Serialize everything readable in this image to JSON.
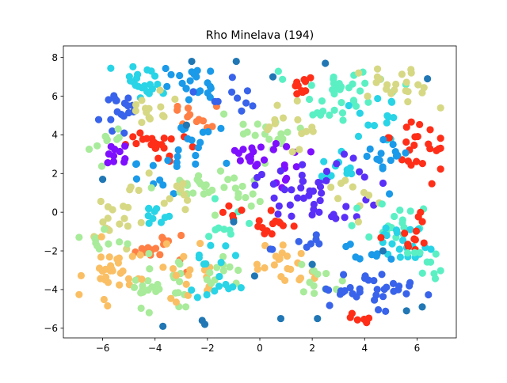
{
  "chart_data": {
    "type": "scatter",
    "title": "Rho Minelava (194)",
    "xlabel": "",
    "ylabel": "",
    "xlim": [
      -7.5,
      7.5
    ],
    "ylim": [
      -6.5,
      8.6
    ],
    "xticks": [
      -6,
      -4,
      -2,
      0,
      2,
      4,
      6
    ],
    "yticks": [
      -6,
      -4,
      -2,
      0,
      2,
      4,
      6,
      8
    ],
    "grid": false,
    "legend": "none",
    "colormap": "rainbow",
    "clusters": [
      {
        "label": "c01",
        "color": "#28d4e6",
        "center": [
          -4.6,
          6.8
        ],
        "spread": [
          0.55,
          0.45
        ],
        "n": 22
      },
      {
        "label": "c02",
        "color": "#1a9ae9",
        "center": [
          -2.5,
          6.7
        ],
        "spread": [
          0.6,
          0.5
        ],
        "n": 22
      },
      {
        "label": "c03",
        "color": "#ff7f45",
        "center": [
          -2.7,
          4.9
        ],
        "spread": [
          0.35,
          0.35
        ],
        "n": 12
      },
      {
        "label": "c04",
        "color": "#3863ea",
        "center": [
          -5.4,
          5.1
        ],
        "spread": [
          0.5,
          0.6
        ],
        "n": 18
      },
      {
        "label": "c05",
        "color": "#d6d884",
        "center": [
          -4.2,
          5.4
        ],
        "spread": [
          0.4,
          0.5
        ],
        "n": 14
      },
      {
        "label": "c06",
        "color": "#a8eb9a",
        "center": [
          -6.0,
          3.6
        ],
        "spread": [
          0.5,
          0.4
        ],
        "n": 10
      },
      {
        "label": "c07",
        "color": "#ff2e18",
        "center": [
          -4.1,
          3.4
        ],
        "spread": [
          0.6,
          0.4
        ],
        "n": 22
      },
      {
        "label": "c08",
        "color": "#7f0fff",
        "center": [
          -5.5,
          2.9
        ],
        "spread": [
          0.4,
          0.3
        ],
        "n": 10
      },
      {
        "label": "c09",
        "color": "#1a9ae9",
        "center": [
          -2.1,
          4.0
        ],
        "spread": [
          0.6,
          0.6
        ],
        "n": 12
      },
      {
        "label": "c10",
        "color": "#1a9ae9",
        "center": [
          -3.5,
          2.0
        ],
        "spread": [
          0.7,
          0.4
        ],
        "n": 14
      },
      {
        "label": "c11",
        "color": "#a8eb9a",
        "center": [
          -2.3,
          1.5
        ],
        "spread": [
          0.9,
          0.5
        ],
        "n": 18
      },
      {
        "label": "c12",
        "color": "#a8eb9a",
        "center": [
          -0.9,
          1.2
        ],
        "spread": [
          0.7,
          0.7
        ],
        "n": 14
      },
      {
        "label": "c13",
        "color": "#d6d884",
        "center": [
          -3.3,
          1.0
        ],
        "spread": [
          0.6,
          0.5
        ],
        "n": 12
      },
      {
        "label": "c14",
        "color": "#28d4e6",
        "center": [
          -4.1,
          -0.1
        ],
        "spread": [
          0.3,
          0.6
        ],
        "n": 10
      },
      {
        "label": "c15",
        "color": "#d6d884",
        "center": [
          -5.5,
          -0.6
        ],
        "spread": [
          0.5,
          0.7
        ],
        "n": 18
      },
      {
        "label": "c16",
        "color": "#a8eb9a",
        "center": [
          -6.0,
          -1.5
        ],
        "spread": [
          0.5,
          0.3
        ],
        "n": 10
      },
      {
        "label": "c17",
        "color": "#ff7f45",
        "center": [
          -3.7,
          -1.8
        ],
        "spread": [
          0.6,
          0.5
        ],
        "n": 16
      },
      {
        "label": "c18",
        "color": "#fabf64",
        "center": [
          -5.6,
          -3.2
        ],
        "spread": [
          0.6,
          0.6
        ],
        "n": 30
      },
      {
        "label": "c19",
        "color": "#a8eb9a",
        "center": [
          -4.0,
          -3.9
        ],
        "spread": [
          0.6,
          0.7
        ],
        "n": 26
      },
      {
        "label": "c20",
        "color": "#fabf64",
        "center": [
          -2.8,
          -3.3
        ],
        "spread": [
          0.5,
          0.7
        ],
        "n": 18
      },
      {
        "label": "c21",
        "color": "#a8eb9a",
        "center": [
          -1.8,
          -3.2
        ],
        "spread": [
          0.6,
          0.5
        ],
        "n": 14
      },
      {
        "label": "c22",
        "color": "#28d4e6",
        "center": [
          -1.2,
          -3.9
        ],
        "spread": [
          0.6,
          0.5
        ],
        "n": 10
      },
      {
        "label": "c23",
        "color": "#5bf0c4",
        "center": [
          -1.5,
          -0.5
        ],
        "spread": [
          0.5,
          0.5
        ],
        "n": 10
      },
      {
        "label": "c24",
        "color": "#a8eb9a",
        "center": [
          0.3,
          4.0
        ],
        "spread": [
          0.6,
          0.5
        ],
        "n": 18
      },
      {
        "label": "c25",
        "color": "#7f0fff",
        "center": [
          -0.5,
          3.0
        ],
        "spread": [
          0.4,
          0.4
        ],
        "n": 10
      },
      {
        "label": "c26",
        "color": "#7f0fff",
        "center": [
          0.6,
          2.6
        ],
        "spread": [
          0.6,
          0.7
        ],
        "n": 16
      },
      {
        "label": "c27",
        "color": "#5a30f8",
        "center": [
          1.4,
          1.1
        ],
        "spread": [
          1.0,
          0.6
        ],
        "n": 20
      },
      {
        "label": "c28",
        "color": "#5a30f8",
        "center": [
          2.7,
          0.6
        ],
        "spread": [
          0.8,
          0.7
        ],
        "n": 20
      },
      {
        "label": "c29",
        "color": "#ff2e18",
        "center": [
          0.2,
          -0.6
        ],
        "spread": [
          0.5,
          0.4
        ],
        "n": 14
      },
      {
        "label": "c30",
        "color": "#ff2e18",
        "center": [
          -1.1,
          -0.1
        ],
        "spread": [
          0.3,
          0.2
        ],
        "n": 4
      },
      {
        "label": "c31",
        "color": "#fabf64",
        "center": [
          1.0,
          -2.8
        ],
        "spread": [
          0.6,
          0.7
        ],
        "n": 22
      },
      {
        "label": "c32",
        "color": "#a8eb9a",
        "center": [
          2.5,
          -3.5
        ],
        "spread": [
          0.6,
          0.5
        ],
        "n": 12
      },
      {
        "label": "c33",
        "color": "#3863ea",
        "center": [
          1.5,
          -1.6
        ],
        "spread": [
          0.5,
          0.3
        ],
        "n": 8
      },
      {
        "label": "c34",
        "color": "#ff2e18",
        "center": [
          1.5,
          6.4
        ],
        "spread": [
          0.4,
          0.3
        ],
        "n": 10
      },
      {
        "label": "c35",
        "color": "#d6d884",
        "center": [
          1.0,
          4.5
        ],
        "spread": [
          0.6,
          0.5
        ],
        "n": 14
      },
      {
        "label": "c36",
        "color": "#5bf0c4",
        "center": [
          3.2,
          6.5
        ],
        "spread": [
          0.8,
          0.6
        ],
        "n": 26
      },
      {
        "label": "c37",
        "color": "#5bf0c4",
        "center": [
          2.7,
          5.2
        ],
        "spread": [
          0.5,
          0.4
        ],
        "n": 10
      },
      {
        "label": "c38",
        "color": "#d6d884",
        "center": [
          5.3,
          6.6
        ],
        "spread": [
          0.7,
          0.6
        ],
        "n": 22
      },
      {
        "label": "c39",
        "color": "#28d4e6",
        "center": [
          4.6,
          4.9
        ],
        "spread": [
          0.5,
          0.6
        ],
        "n": 14
      },
      {
        "label": "c40",
        "color": "#ff2e18",
        "center": [
          5.8,
          3.3
        ],
        "spread": [
          0.6,
          0.8
        ],
        "n": 24
      },
      {
        "label": "c41",
        "color": "#1a9ae9",
        "center": [
          4.8,
          2.7
        ],
        "spread": [
          0.5,
          0.6
        ],
        "n": 16
      },
      {
        "label": "c42",
        "color": "#28d4e6",
        "center": [
          2.8,
          2.1
        ],
        "spread": [
          0.5,
          0.5
        ],
        "n": 12
      },
      {
        "label": "c43",
        "color": "#d6d884",
        "center": [
          3.6,
          1.0
        ],
        "spread": [
          0.5,
          0.5
        ],
        "n": 10
      },
      {
        "label": "c44",
        "color": "#5a30f8",
        "center": [
          3.3,
          2.4
        ],
        "spread": [
          0.5,
          0.4
        ],
        "n": 8
      },
      {
        "label": "c45",
        "color": "#5bf0c4",
        "center": [
          4.6,
          -0.5
        ],
        "spread": [
          0.8,
          0.5
        ],
        "n": 18
      },
      {
        "label": "c46",
        "color": "#28d4e6",
        "center": [
          5.4,
          -1.6
        ],
        "spread": [
          0.7,
          0.6
        ],
        "n": 22
      },
      {
        "label": "c47",
        "color": "#ff2e18",
        "center": [
          6.1,
          -1.5
        ],
        "spread": [
          0.5,
          0.6
        ],
        "n": 12
      },
      {
        "label": "c48",
        "color": "#1a9ae9",
        "center": [
          3.9,
          -2.3
        ],
        "spread": [
          0.5,
          0.4
        ],
        "n": 8
      },
      {
        "label": "c49",
        "color": "#5bf0c4",
        "center": [
          6.2,
          -2.9
        ],
        "spread": [
          0.5,
          0.5
        ],
        "n": 10
      },
      {
        "label": "c50",
        "color": "#3863ea",
        "center": [
          4.7,
          -3.9
        ],
        "spread": [
          0.5,
          0.6
        ],
        "n": 22
      },
      {
        "label": "c51",
        "color": "#3863ea",
        "center": [
          3.4,
          -4.2
        ],
        "spread": [
          0.5,
          0.4
        ],
        "n": 12
      },
      {
        "label": "c52",
        "color": "#ff2e18",
        "center": [
          3.7,
          -5.3
        ],
        "spread": [
          0.3,
          0.3
        ],
        "n": 6
      },
      {
        "label": "c53",
        "color": "#28d4e6",
        "center": [
          -1.5,
          -2.3
        ],
        "spread": [
          0.5,
          0.4
        ],
        "n": 8
      },
      {
        "label": "c54",
        "color": "#3863ea",
        "center": [
          -0.9,
          6.0
        ],
        "spread": [
          0.6,
          0.5
        ],
        "n": 10
      }
    ],
    "points": [
      {
        "x": -2.6,
        "y": 7.8,
        "color": "#2077b4"
      },
      {
        "x": -0.9,
        "y": 7.8,
        "color": "#2077b4"
      },
      {
        "x": 2.5,
        "y": 7.7,
        "color": "#2077b4"
      },
      {
        "x": 6.4,
        "y": 6.9,
        "color": "#2077b4"
      },
      {
        "x": 0.5,
        "y": 7.0,
        "color": "#2077b4"
      },
      {
        "x": -2.8,
        "y": 4.5,
        "color": "#2077b4"
      },
      {
        "x": -6.0,
        "y": 1.7,
        "color": "#2077b4"
      },
      {
        "x": -3.7,
        "y": -5.9,
        "color": "#2077b4"
      },
      {
        "x": -2.1,
        "y": -5.8,
        "color": "#2077b4"
      },
      {
        "x": -2.2,
        "y": -5.6,
        "color": "#2077b4"
      },
      {
        "x": 0.8,
        "y": -5.5,
        "color": "#2077b4"
      },
      {
        "x": 2.2,
        "y": -5.5,
        "color": "#2077b4"
      },
      {
        "x": 5.6,
        "y": -5.1,
        "color": "#2077b4"
      },
      {
        "x": 6.2,
        "y": -4.9,
        "color": "#2077b4"
      },
      {
        "x": 4.7,
        "y": -2.0,
        "color": "#2077b4"
      },
      {
        "x": 2.0,
        "y": -2.7,
        "color": "#2077b4"
      },
      {
        "x": -1.0,
        "y": -0.5,
        "color": "#2077b4"
      },
      {
        "x": -0.2,
        "y": -3.3,
        "color": "#2077b4"
      }
    ]
  }
}
